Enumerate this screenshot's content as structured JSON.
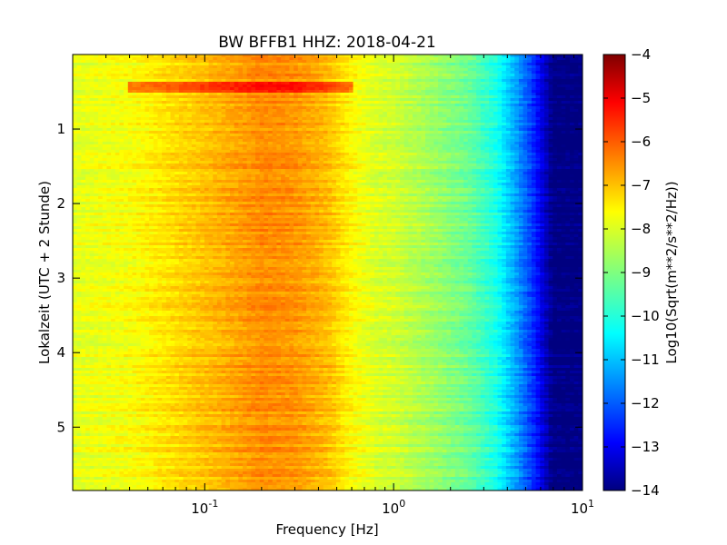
{
  "chart_data": {
    "type": "heatmap",
    "title": "BW BFFB1 HHZ: 2018-04-21",
    "xlabel": "Frequency [Hz]",
    "ylabel": "Lokalzeit (UTC + 2 Stunde)",
    "xscale": "log",
    "xlim": [
      0.02,
      10
    ],
    "ylim": [
      5.85,
      0
    ],
    "x_ticks": [
      {
        "value": 0.1,
        "base": "10",
        "exp": "-1"
      },
      {
        "value": 1,
        "base": "10",
        "exp": "0"
      },
      {
        "value": 10,
        "base": "10",
        "exp": "1"
      }
    ],
    "y_ticks": [
      {
        "value": 1,
        "label": "1"
      },
      {
        "value": 2,
        "label": "2"
      },
      {
        "value": 3,
        "label": "3"
      },
      {
        "value": 4,
        "label": "4"
      },
      {
        "value": 5,
        "label": "5"
      }
    ],
    "colorbar": {
      "label": "Log10(Sqrt(m**2/s**2/Hz))",
      "colormap": "jet",
      "range": [
        -14,
        -4
      ],
      "ticks": [
        {
          "value": -4,
          "label": "−4"
        },
        {
          "value": -5,
          "label": "−5"
        },
        {
          "value": -6,
          "label": "−6"
        },
        {
          "value": -7,
          "label": "−7"
        },
        {
          "value": -8,
          "label": "−8"
        },
        {
          "value": -9,
          "label": "−9"
        },
        {
          "value": -10,
          "label": "−10"
        },
        {
          "value": -11,
          "label": "−11"
        },
        {
          "value": -12,
          "label": "−12"
        },
        {
          "value": -13,
          "label": "−13"
        },
        {
          "value": -14,
          "label": "−14"
        }
      ]
    },
    "frequency_profile": {
      "frequencies": [
        0.02,
        0.04,
        0.06,
        0.12,
        0.2,
        0.3,
        0.45,
        0.6,
        0.8,
        1.0,
        1.5,
        2.5,
        3.5,
        4.5,
        5.5,
        7.0,
        10.0
      ],
      "levels": [
        -8.0,
        -7.8,
        -7.5,
        -7.0,
        -6.6,
        -6.7,
        -7.1,
        -7.7,
        -8.1,
        -8.2,
        -8.6,
        -9.2,
        -10.0,
        -11.2,
        -12.3,
        -14.0,
        -14.0
      ]
    },
    "time_features": [
      {
        "hour_start": 0.35,
        "hour_end": 0.5,
        "freq_min": 0.04,
        "freq_max": 0.6,
        "level_change": 1.3
      }
    ]
  }
}
